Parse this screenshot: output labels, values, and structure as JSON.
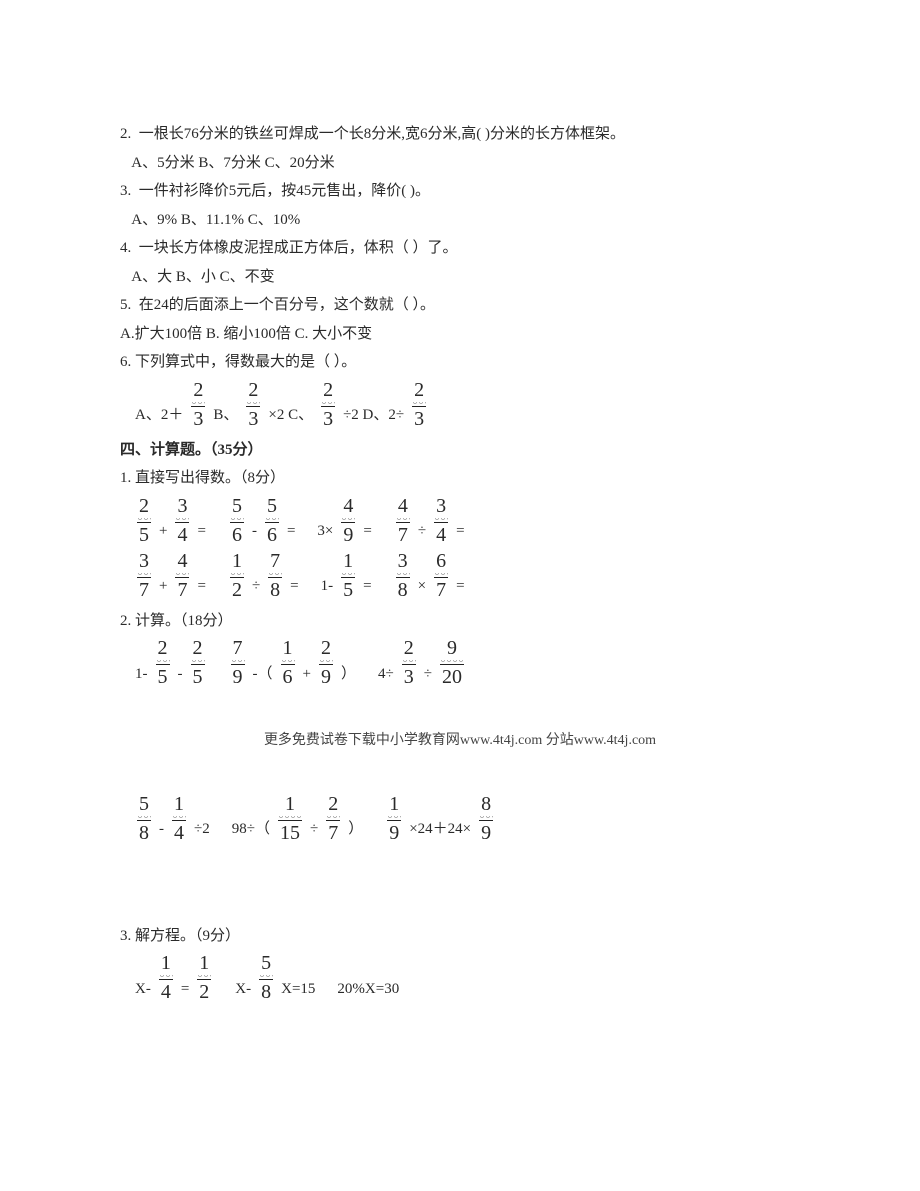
{
  "q2": {
    "stem": "2.  一根长76分米的铁丝可焊成一个长8分米,宽6分米,高( )分米的长方体框架。",
    "opts": "   A、5分米 B、7分米 C、20分米"
  },
  "q3": {
    "stem": "3.  一件衬衫降价5元后，按45元售出，降价( )。",
    "opts": "   A、9% B、11.1% C、10%"
  },
  "q4": {
    "stem": "4.  一块长方体橡皮泥捏成正方体后，体积（ ）了。",
    "opts": "   A、大 B、小 C、不变"
  },
  "q5": {
    "stem": "5.  在24的后面添上一个百分号，这个数就（ ）。",
    "opts": "A.扩大100倍 B. 缩小100倍 C. 大小不变"
  },
  "q6": {
    "stem": "6. 下列算式中，得数最大的是（ ）。",
    "a_pre": "A、2＋",
    "b_pre": "B、",
    "b_mid": "×2 C、",
    "c_mid": "÷2 D、2÷",
    "frac": {
      "n": "2",
      "d": "3"
    }
  },
  "sec4": "四、计算题。（35分）",
  "p1": {
    "title": "1. 直接写出得数。（8分）",
    "row1": [
      {
        "t": "frac",
        "n": "2",
        "d": "5"
      },
      {
        "t": "tok",
        "v": "+"
      },
      {
        "t": "frac",
        "n": "3",
        "d": "4"
      },
      {
        "t": "tok",
        "v": "="
      },
      {
        "t": "gap",
        "s": "sm"
      },
      {
        "t": "frac",
        "n": "5",
        "d": "6"
      },
      {
        "t": "tok",
        "v": "-"
      },
      {
        "t": "frac",
        "n": "5",
        "d": "6"
      },
      {
        "t": "tok",
        "v": "="
      },
      {
        "t": "gap",
        "s": "sm"
      },
      {
        "t": "tok",
        "v": "3×"
      },
      {
        "t": "frac",
        "n": "4",
        "d": "9"
      },
      {
        "t": "tok",
        "v": "="
      },
      {
        "t": "gap",
        "s": "sm"
      },
      {
        "t": "frac",
        "n": "4",
        "d": "7"
      },
      {
        "t": "tok",
        "v": "÷"
      },
      {
        "t": "frac",
        "n": "3",
        "d": "4"
      },
      {
        "t": "tok",
        "v": "="
      }
    ],
    "row2": [
      {
        "t": "frac",
        "n": "3",
        "d": "7"
      },
      {
        "t": "tok",
        "v": "+"
      },
      {
        "t": "frac",
        "n": "4",
        "d": "7"
      },
      {
        "t": "tok",
        "v": "="
      },
      {
        "t": "gap",
        "s": "sm"
      },
      {
        "t": "frac",
        "n": "1",
        "d": "2"
      },
      {
        "t": "tok",
        "v": "÷"
      },
      {
        "t": "frac",
        "n": "7",
        "d": "8"
      },
      {
        "t": "tok",
        "v": "="
      },
      {
        "t": "gap",
        "s": "sm"
      },
      {
        "t": "tok",
        "v": "1-"
      },
      {
        "t": "frac",
        "n": "1",
        "d": "5"
      },
      {
        "t": "tok",
        "v": "="
      },
      {
        "t": "gap",
        "s": "sm"
      },
      {
        "t": "frac",
        "n": "3",
        "d": "8"
      },
      {
        "t": "tok",
        "v": "×"
      },
      {
        "t": "frac",
        "n": "6",
        "d": "7"
      },
      {
        "t": "tok",
        "v": "="
      }
    ]
  },
  "p2": {
    "title": "2. 计算。（18分）",
    "row1": [
      {
        "t": "tok",
        "v": "1-"
      },
      {
        "t": "frac",
        "n": "2",
        "d": "5"
      },
      {
        "t": "tok",
        "v": "-"
      },
      {
        "t": "frac",
        "n": "2",
        "d": "5"
      },
      {
        "t": "gap",
        "s": "sm"
      },
      {
        "t": "frac",
        "n": "7",
        "d": "9"
      },
      {
        "t": "tok",
        "v": "-（"
      },
      {
        "t": "frac",
        "n": "1",
        "d": "6"
      },
      {
        "t": "tok",
        "v": "+"
      },
      {
        "t": "frac",
        "n": "2",
        "d": "9"
      },
      {
        "t": "tok",
        "v": "）"
      },
      {
        "t": "gap",
        "s": "sm"
      },
      {
        "t": "tok",
        "v": "4÷"
      },
      {
        "t": "frac",
        "n": "2",
        "d": "3"
      },
      {
        "t": "tok",
        "v": "÷"
      },
      {
        "t": "frac",
        "n": "9",
        "d": "20"
      }
    ],
    "row2": [
      {
        "t": "frac",
        "n": "5",
        "d": "8"
      },
      {
        "t": "tok",
        "v": "-"
      },
      {
        "t": "frac",
        "n": "1",
        "d": "4"
      },
      {
        "t": "tok",
        "v": "÷2"
      },
      {
        "t": "gap",
        "s": "sm"
      },
      {
        "t": "tok",
        "v": "98÷（"
      },
      {
        "t": "frac",
        "n": "1",
        "d": "15"
      },
      {
        "t": "tok",
        "v": "÷"
      },
      {
        "t": "frac",
        "n": "2",
        "d": "7"
      },
      {
        "t": "tok",
        "v": "）"
      },
      {
        "t": "gap",
        "s": "sm"
      },
      {
        "t": "frac",
        "n": "1",
        "d": "9"
      },
      {
        "t": "tok",
        "v": "×24＋24×"
      },
      {
        "t": "frac",
        "n": "8",
        "d": "9"
      }
    ]
  },
  "p3": {
    "title": "3. 解方程。（9分）",
    "row": [
      {
        "t": "tok",
        "v": "X-"
      },
      {
        "t": "frac",
        "n": "1",
        "d": "4"
      },
      {
        "t": "tok",
        "v": "="
      },
      {
        "t": "frac",
        "n": "1",
        "d": "2"
      },
      {
        "t": "gap",
        "s": "sm"
      },
      {
        "t": "tok",
        "v": "X-"
      },
      {
        "t": "frac",
        "n": "5",
        "d": "8"
      },
      {
        "t": "tok",
        "v": "X=15"
      },
      {
        "t": "gap",
        "s": "sm"
      },
      {
        "t": "tok",
        "v": "20%X=30"
      }
    ]
  },
  "footer": "更多免费试卷下载中小学教育网www.4t4j.com 分站www.4t4j.com"
}
